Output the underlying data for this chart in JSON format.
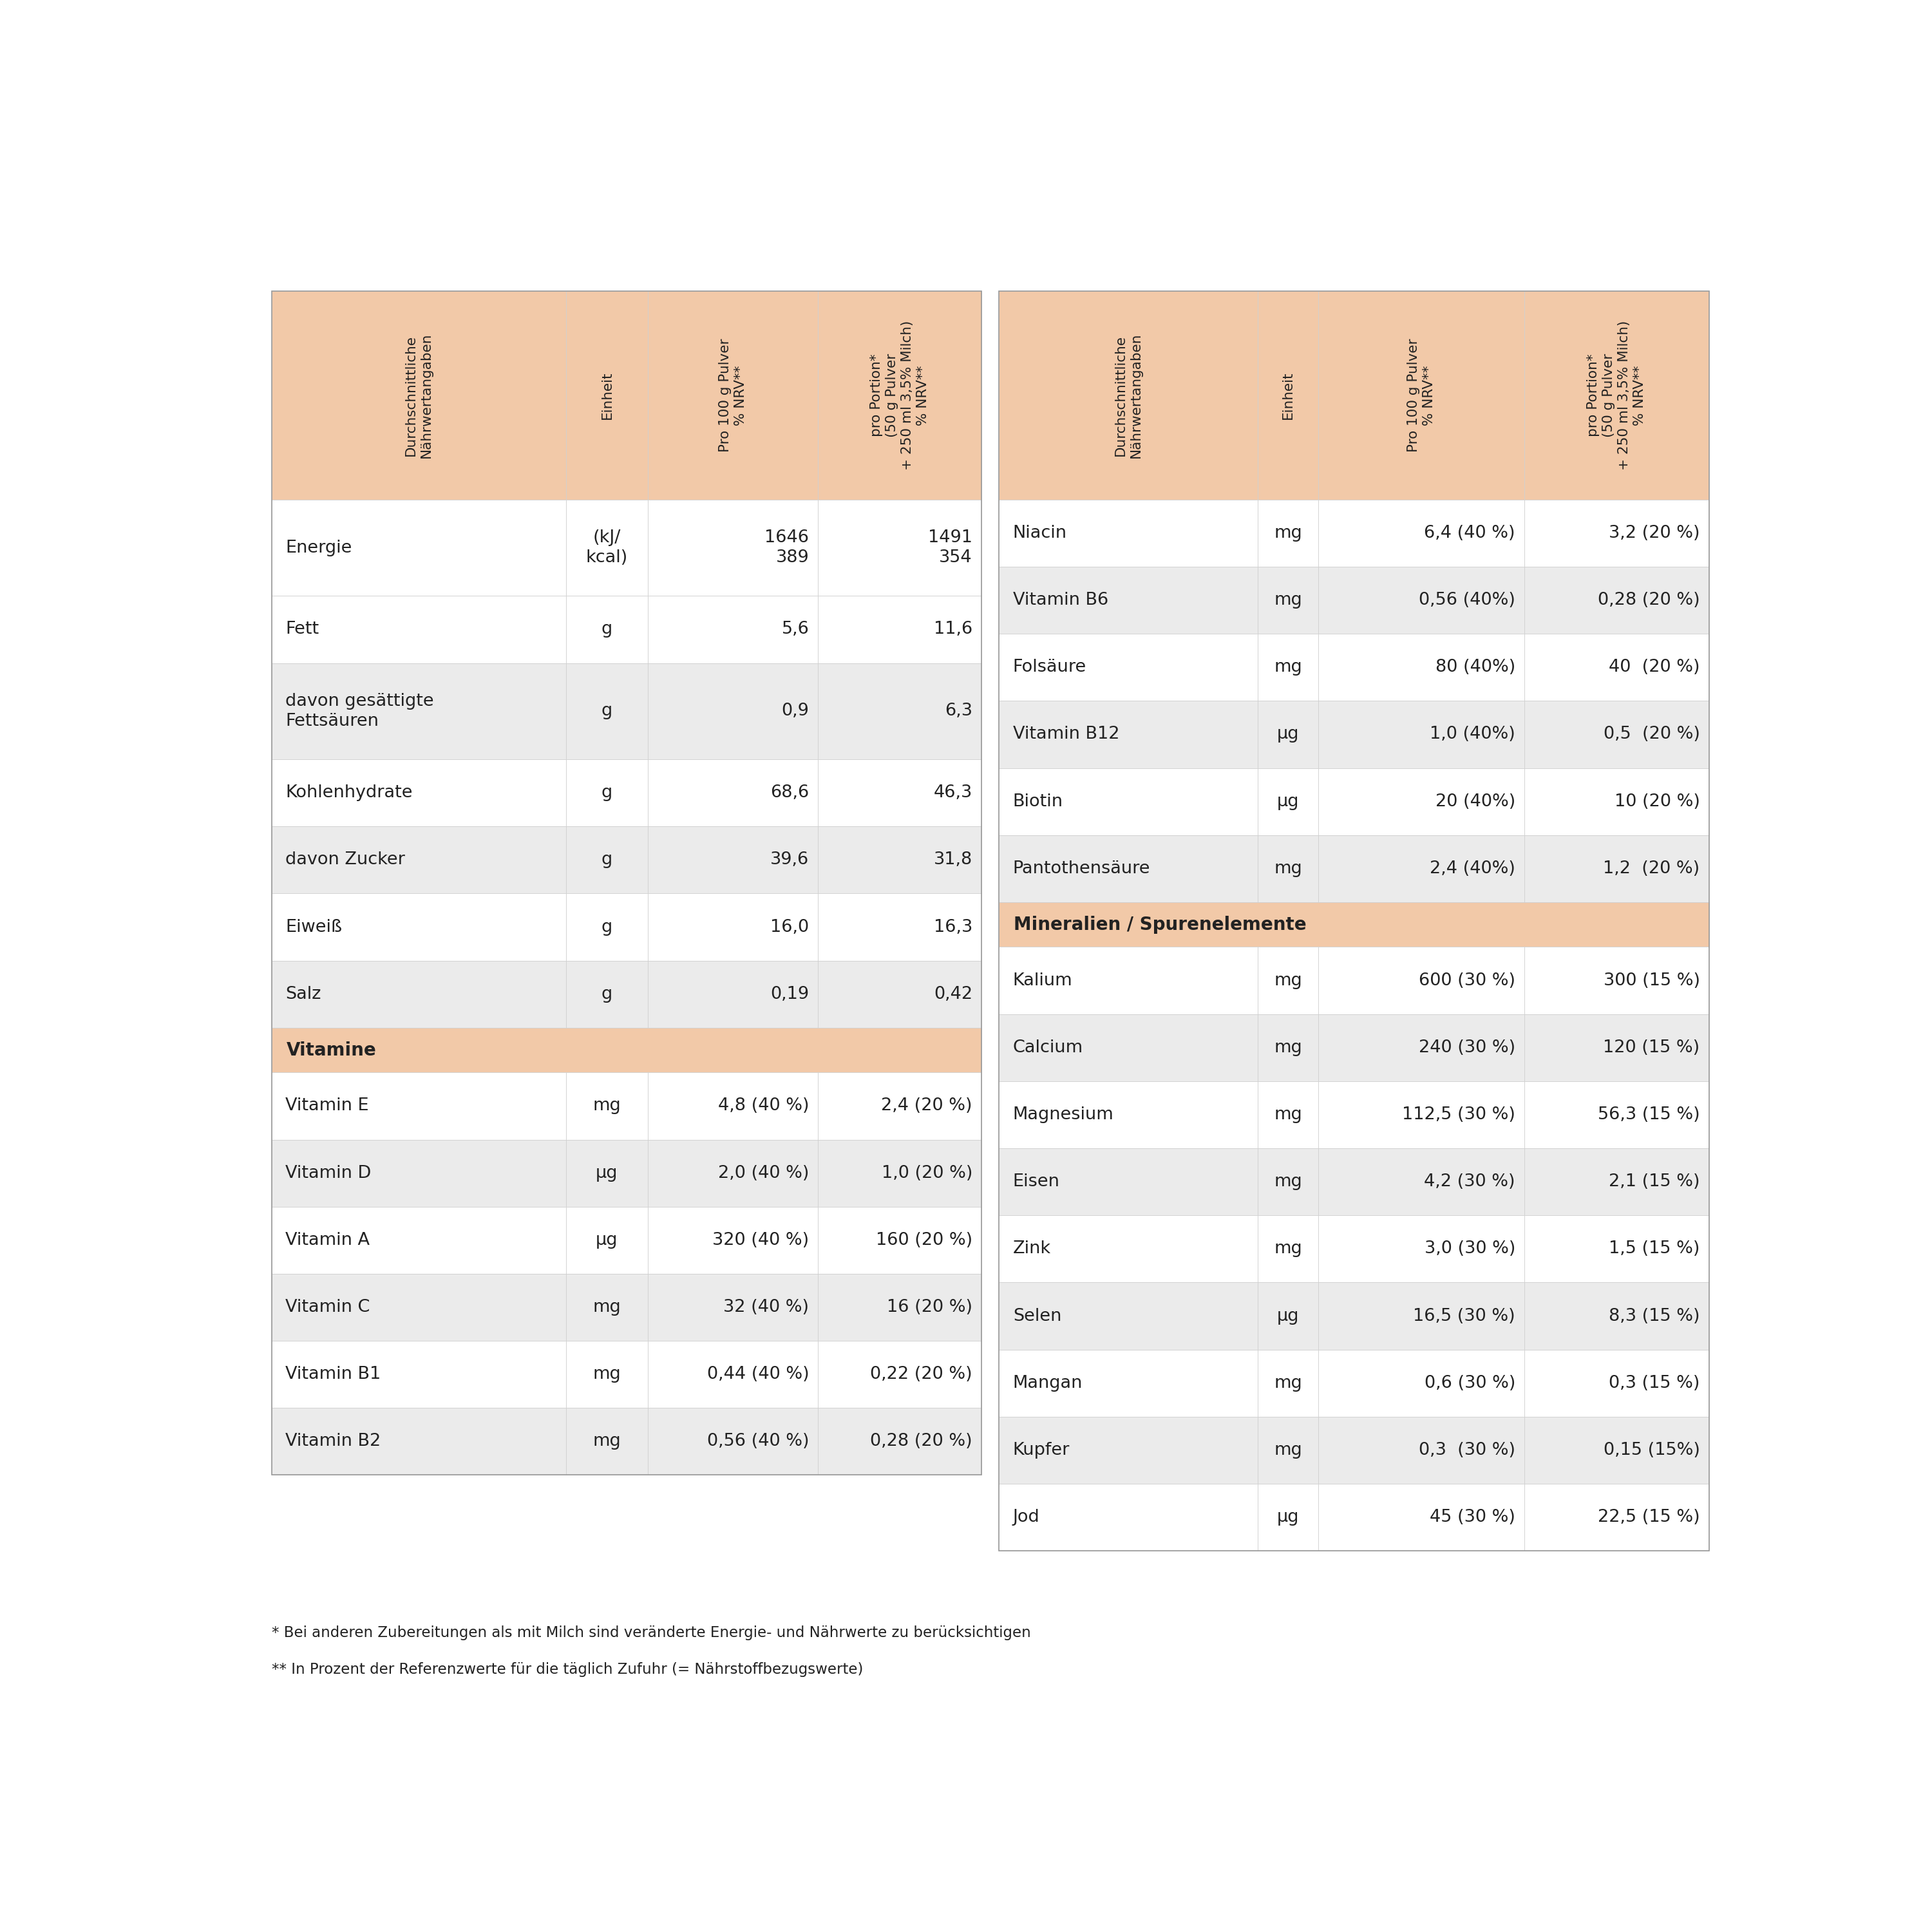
{
  "bg_color": "#ffffff",
  "header_color": "#f2c9a8",
  "alt_row_color": "#ebebeb",
  "white_row_color": "#ffffff",
  "section_header_color": "#f2c9a8",
  "text_color": "#222222",
  "border_color": "#d0d0d0",
  "left_rows": [
    {
      "name": "Energie",
      "unit": "(kJ/\nkcal)",
      "per100": "1646\n389",
      "portion": "1491\n354",
      "shade": 0,
      "tall": true
    },
    {
      "name": "Fett",
      "unit": "g",
      "per100": "5,6",
      "portion": "11,6",
      "shade": 0,
      "tall": false
    },
    {
      "name": "davon gesättigte\nFettsäuren",
      "unit": "g",
      "per100": "0,9",
      "portion": "6,3",
      "shade": 1,
      "tall": true
    },
    {
      "name": "Kohlenhydrate",
      "unit": "g",
      "per100": "68,6",
      "portion": "46,3",
      "shade": 0,
      "tall": false
    },
    {
      "name": "davon Zucker",
      "unit": "g",
      "per100": "39,6",
      "portion": "31,8",
      "shade": 1,
      "tall": false
    },
    {
      "name": "Eiweiß",
      "unit": "g",
      "per100": "16,0",
      "portion": "16,3",
      "shade": 0,
      "tall": false
    },
    {
      "name": "Salz",
      "unit": "g",
      "per100": "0,19",
      "portion": "0,42",
      "shade": 1,
      "tall": false
    },
    {
      "name": "Vitamine",
      "unit": "",
      "per100": "",
      "portion": "",
      "section_header": true
    },
    {
      "name": "Vitamin E",
      "unit": "mg",
      "per100": "4,8 (40 %)",
      "portion": "2,4 (20 %)",
      "shade": 0,
      "tall": false
    },
    {
      "name": "Vitamin D",
      "unit": "µg",
      "per100": "2,0 (40 %)",
      "portion": "1,0 (20 %)",
      "shade": 1,
      "tall": false
    },
    {
      "name": "Vitamin A",
      "unit": "µg",
      "per100": "320 (40 %)",
      "portion": "160 (20 %)",
      "shade": 0,
      "tall": false
    },
    {
      "name": "Vitamin C",
      "unit": "mg",
      "per100": "32 (40 %)",
      "portion": "16 (20 %)",
      "shade": 1,
      "tall": false
    },
    {
      "name": "Vitamin B1",
      "unit": "mg",
      "per100": "0,44 (40 %)",
      "portion": "0,22 (20 %)",
      "shade": 0,
      "tall": false
    },
    {
      "name": "Vitamin B2",
      "unit": "mg",
      "per100": "0,56 (40 %)",
      "portion": "0,28 (20 %)",
      "shade": 1,
      "tall": false
    }
  ],
  "right_rows": [
    {
      "name": "Niacin",
      "unit": "mg",
      "per100": "6,4 (40 %)",
      "portion": "3,2 (20 %)",
      "shade": 0,
      "tall": false
    },
    {
      "name": "Vitamin B6",
      "unit": "mg",
      "per100": "0,56 (40%)",
      "portion": "0,28 (20 %)",
      "shade": 1,
      "tall": false
    },
    {
      "name": "Folsäure",
      "unit": "mg",
      "per100": "80 (40%)",
      "portion": "40  (20 %)",
      "shade": 0,
      "tall": false
    },
    {
      "name": "Vitamin B12",
      "unit": "µg",
      "per100": "1,0 (40%)",
      "portion": "0,5  (20 %)",
      "shade": 1,
      "tall": false
    },
    {
      "name": "Biotin",
      "unit": "µg",
      "per100": "20 (40%)",
      "portion": "10 (20 %)",
      "shade": 0,
      "tall": false
    },
    {
      "name": "Pantothensäure",
      "unit": "mg",
      "per100": "2,4 (40%)",
      "portion": "1,2  (20 %)",
      "shade": 1,
      "tall": false
    },
    {
      "name": "Mineralien / Spurenelemente",
      "unit": "",
      "per100": "",
      "portion": "",
      "section_header": true
    },
    {
      "name": "Kalium",
      "unit": "mg",
      "per100": "600 (30 %)",
      "portion": "300 (15 %)",
      "shade": 0,
      "tall": false
    },
    {
      "name": "Calcium",
      "unit": "mg",
      "per100": "240 (30 %)",
      "portion": "120 (15 %)",
      "shade": 1,
      "tall": false
    },
    {
      "name": "Magnesium",
      "unit": "mg",
      "per100": "112,5 (30 %)",
      "portion": "56,3 (15 %)",
      "shade": 0,
      "tall": false
    },
    {
      "name": "Eisen",
      "unit": "mg",
      "per100": "4,2 (30 %)",
      "portion": "2,1 (15 %)",
      "shade": 1,
      "tall": false
    },
    {
      "name": "Zink",
      "unit": "mg",
      "per100": "3,0 (30 %)",
      "portion": "1,5 (15 %)",
      "shade": 0,
      "tall": false
    },
    {
      "name": "Selen",
      "unit": "µg",
      "per100": "16,5 (30 %)",
      "portion": "8,3 (15 %)",
      "shade": 1,
      "tall": false
    },
    {
      "name": "Mangan",
      "unit": "mg",
      "per100": "0,6 (30 %)",
      "portion": "0,3 (15 %)",
      "shade": 0,
      "tall": false
    },
    {
      "name": "Kupfer",
      "unit": "mg",
      "per100": "0,3  (30 %)",
      "portion": "0,15 (15%)",
      "shade": 1,
      "tall": false
    },
    {
      "name": "Jod",
      "unit": "µg",
      "per100": "45 (30 %)",
      "portion": "22,5 (15 %)",
      "shade": 0,
      "tall": false
    }
  ],
  "footnote1": "* Bei anderen Zubereitungen als mit Milch sind veränderte Energie- und Nährwerte zu berücksichtigen",
  "footnote2": "** In Prozent der Referenzwerte für die täglich Zufuhr (= Nährstoffbezugswerte)",
  "header_labels": [
    "Durchschnittliche\nNährwertangaben",
    "Einheit",
    "Pro 100 g Pulver\n% NRV**",
    "pro Portion*\n(50 g Pulver\n+ 250 ml 3,5% Milch)\n% NRV**"
  ]
}
